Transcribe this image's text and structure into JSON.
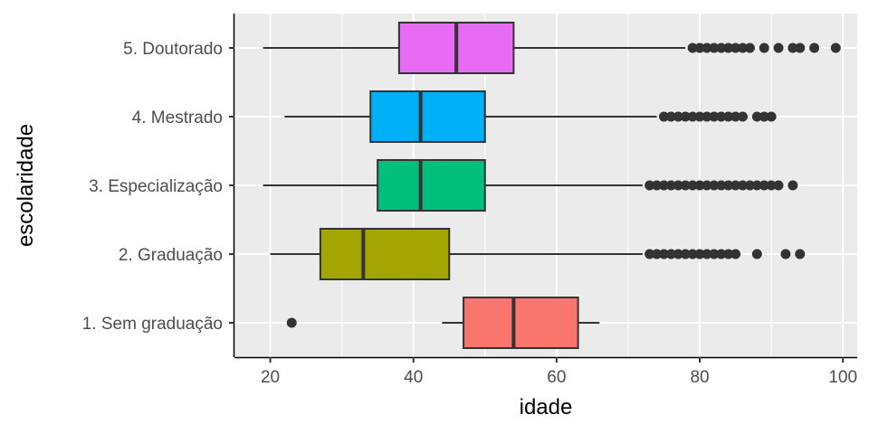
{
  "chart_data": {
    "type": "boxplot",
    "orientation": "horizontal",
    "xlabel": "idade",
    "ylabel": "escolaridade",
    "xlim": [
      15,
      102
    ],
    "x_ticks": [
      20,
      40,
      60,
      80,
      100
    ],
    "grid": true,
    "legend": "none",
    "colors": {
      "panel_bg": "#EBEBEB",
      "grid": "#FFFFFF",
      "box_line": "#333333"
    },
    "categories": [
      "1. Sem graduação",
      "2. Graduação",
      "3. Especialização",
      "4. Mestrado",
      "5. Doutorado"
    ],
    "boxes": [
      {
        "category": "1. Sem graduação",
        "color": "#F8766D",
        "whisker_low": 44,
        "q1": 47,
        "median": 54,
        "q3": 63,
        "whisker_high": 66,
        "outliers": [
          23
        ]
      },
      {
        "category": "2. Graduação",
        "color": "#A3A500",
        "whisker_low": 20,
        "q1": 27,
        "median": 33,
        "q3": 45,
        "whisker_high": 72,
        "outliers": [
          73,
          74,
          75,
          76,
          77,
          78,
          79,
          80,
          81,
          82,
          83,
          84,
          85,
          88,
          92,
          94
        ]
      },
      {
        "category": "3. Especialização",
        "color": "#00BF7D",
        "whisker_low": 19,
        "q1": 35,
        "median": 41,
        "q3": 50,
        "whisker_high": 72,
        "outliers": [
          73,
          74,
          75,
          76,
          77,
          78,
          79,
          80,
          81,
          82,
          83,
          84,
          85,
          86,
          87,
          88,
          89,
          90,
          91,
          93
        ]
      },
      {
        "category": "4. Mestrado",
        "color": "#00B0F6",
        "whisker_low": 22,
        "q1": 34,
        "median": 41,
        "q3": 50,
        "whisker_high": 74,
        "outliers": [
          75,
          76,
          77,
          78,
          79,
          80,
          81,
          82,
          83,
          84,
          85,
          86,
          88,
          89,
          90
        ]
      },
      {
        "category": "5. Doutorado",
        "color": "#E76BF3",
        "whisker_low": 19,
        "q1": 38,
        "median": 46,
        "q3": 54,
        "whisker_high": 78,
        "outliers": [
          79,
          80,
          81,
          82,
          83,
          84,
          85,
          86,
          87,
          89,
          91,
          93,
          94,
          96,
          99
        ]
      }
    ]
  }
}
